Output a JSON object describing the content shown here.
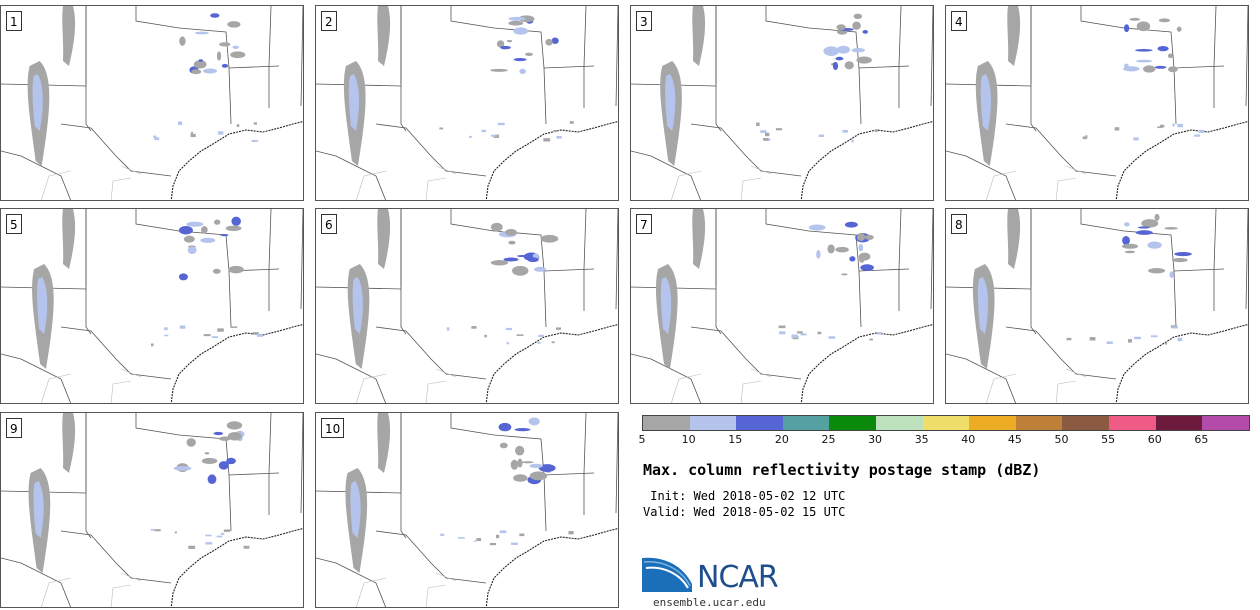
{
  "panels": [
    {
      "label": "1"
    },
    {
      "label": "2"
    },
    {
      "label": "3"
    },
    {
      "label": "4"
    },
    {
      "label": "5"
    },
    {
      "label": "6"
    },
    {
      "label": "7"
    },
    {
      "label": "8"
    },
    {
      "label": "9"
    },
    {
      "label": "10"
    }
  ],
  "colorbar": {
    "colors": [
      "#a6a6a6",
      "#b4c4ec",
      "#5565d4",
      "#55a0a0",
      "#0a8a0a",
      "#bde0bd",
      "#efdf6a",
      "#ecad24",
      "#bd8036",
      "#8b5a40",
      "#f05a86",
      "#6e1a3c",
      "#b44aa9"
    ],
    "ticks": [
      "5",
      "10",
      "15",
      "20",
      "25",
      "30",
      "35",
      "40",
      "45",
      "50",
      "55",
      "60",
      "65"
    ]
  },
  "title": "Max. column reflectivity postage stamp (dBZ)",
  "init_text": " Init: Wed 2018-05-02 12 UTC",
  "valid_text": "Valid: Wed 2018-05-02 15 UTC",
  "logo": {
    "name": "NCAR",
    "url": "ensemble.ucar.edu"
  }
}
